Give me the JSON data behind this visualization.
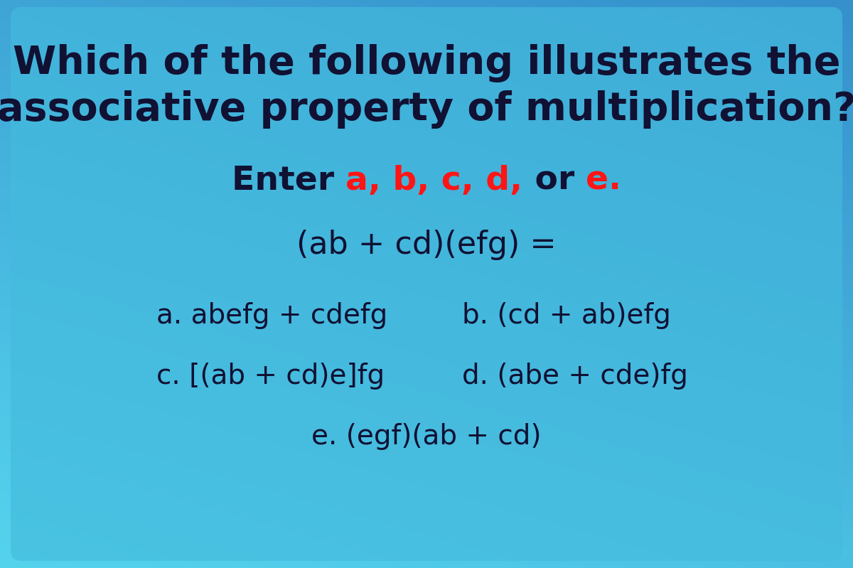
{
  "title_line1": "Which of the following illustrates the",
  "title_line2": "associative property of multiplication?",
  "enter_prefix": "Enter ",
  "enter_letters": "a, b, c, d,",
  "enter_or": " or ",
  "enter_e": "e.",
  "equation": "(ab + cd)(efg) =",
  "option_a": "a. abefg + cdefg",
  "option_b": "b. (cd + ab)efg",
  "option_c": "c. [(ab + cd)e]fg",
  "option_d": "d. (abe + cde)fg",
  "option_e": "e. (egf)(ab + cd)",
  "bg_grad_top": "#55D4EE",
  "bg_grad_bottom": "#3590CC",
  "card_color": "#44BBDD",
  "text_dark": "#111133",
  "text_red": "#FF1515",
  "title_fontsize": 40,
  "enter_fontsize": 34,
  "equation_fontsize": 32,
  "option_fontsize": 28,
  "fig_width": 12.0,
  "fig_height": 7.99
}
